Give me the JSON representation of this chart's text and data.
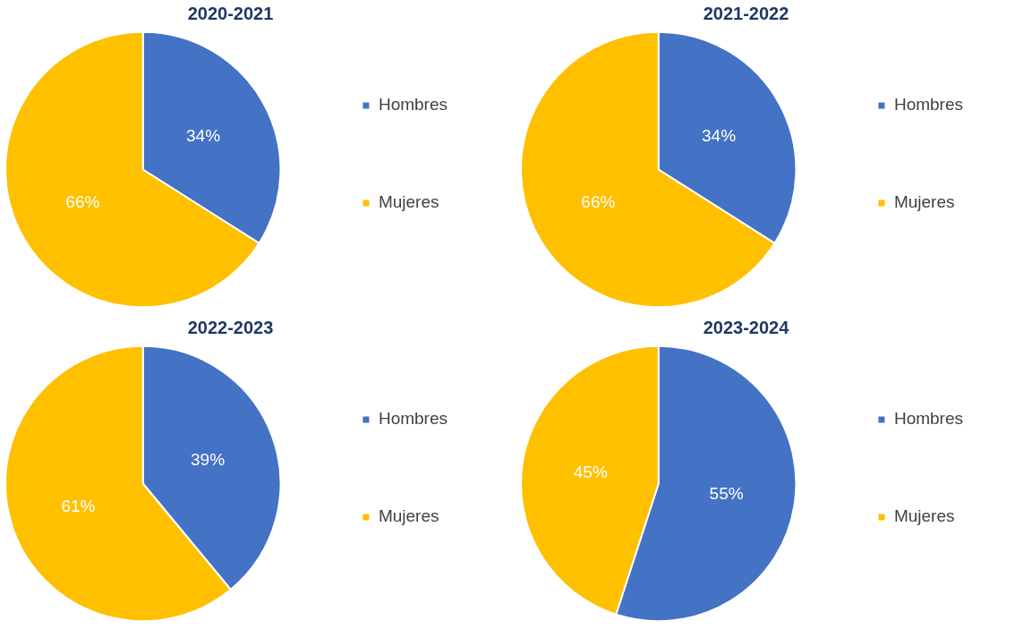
{
  "chart_data": [
    {
      "type": "pie",
      "title": "2020-2021",
      "categories": [
        "Hombres",
        "Mujeres"
      ],
      "values": [
        34,
        66
      ],
      "colors": [
        "#4472c4",
        "#ffc000"
      ],
      "value_labels": [
        "34%",
        "66%"
      ],
      "legend": "right"
    },
    {
      "type": "pie",
      "title": "2021-2022",
      "categories": [
        "Hombres",
        "Mujeres"
      ],
      "values": [
        34,
        66
      ],
      "colors": [
        "#4472c4",
        "#ffc000"
      ],
      "value_labels": [
        "34%",
        "66%"
      ],
      "legend": "right"
    },
    {
      "type": "pie",
      "title": "2022-2023",
      "categories": [
        "Hombres",
        "Mujeres"
      ],
      "values": [
        39,
        61
      ],
      "colors": [
        "#4472c4",
        "#ffc000"
      ],
      "value_labels": [
        "39%",
        "61%"
      ],
      "legend": "right"
    },
    {
      "type": "pie",
      "title": "2023-2024",
      "categories": [
        "Hombres",
        "Mujeres"
      ],
      "values": [
        55,
        45
      ],
      "colors": [
        "#4472c4",
        "#ffc000"
      ],
      "value_labels": [
        "55%",
        "45%"
      ],
      "legend": "right"
    }
  ]
}
